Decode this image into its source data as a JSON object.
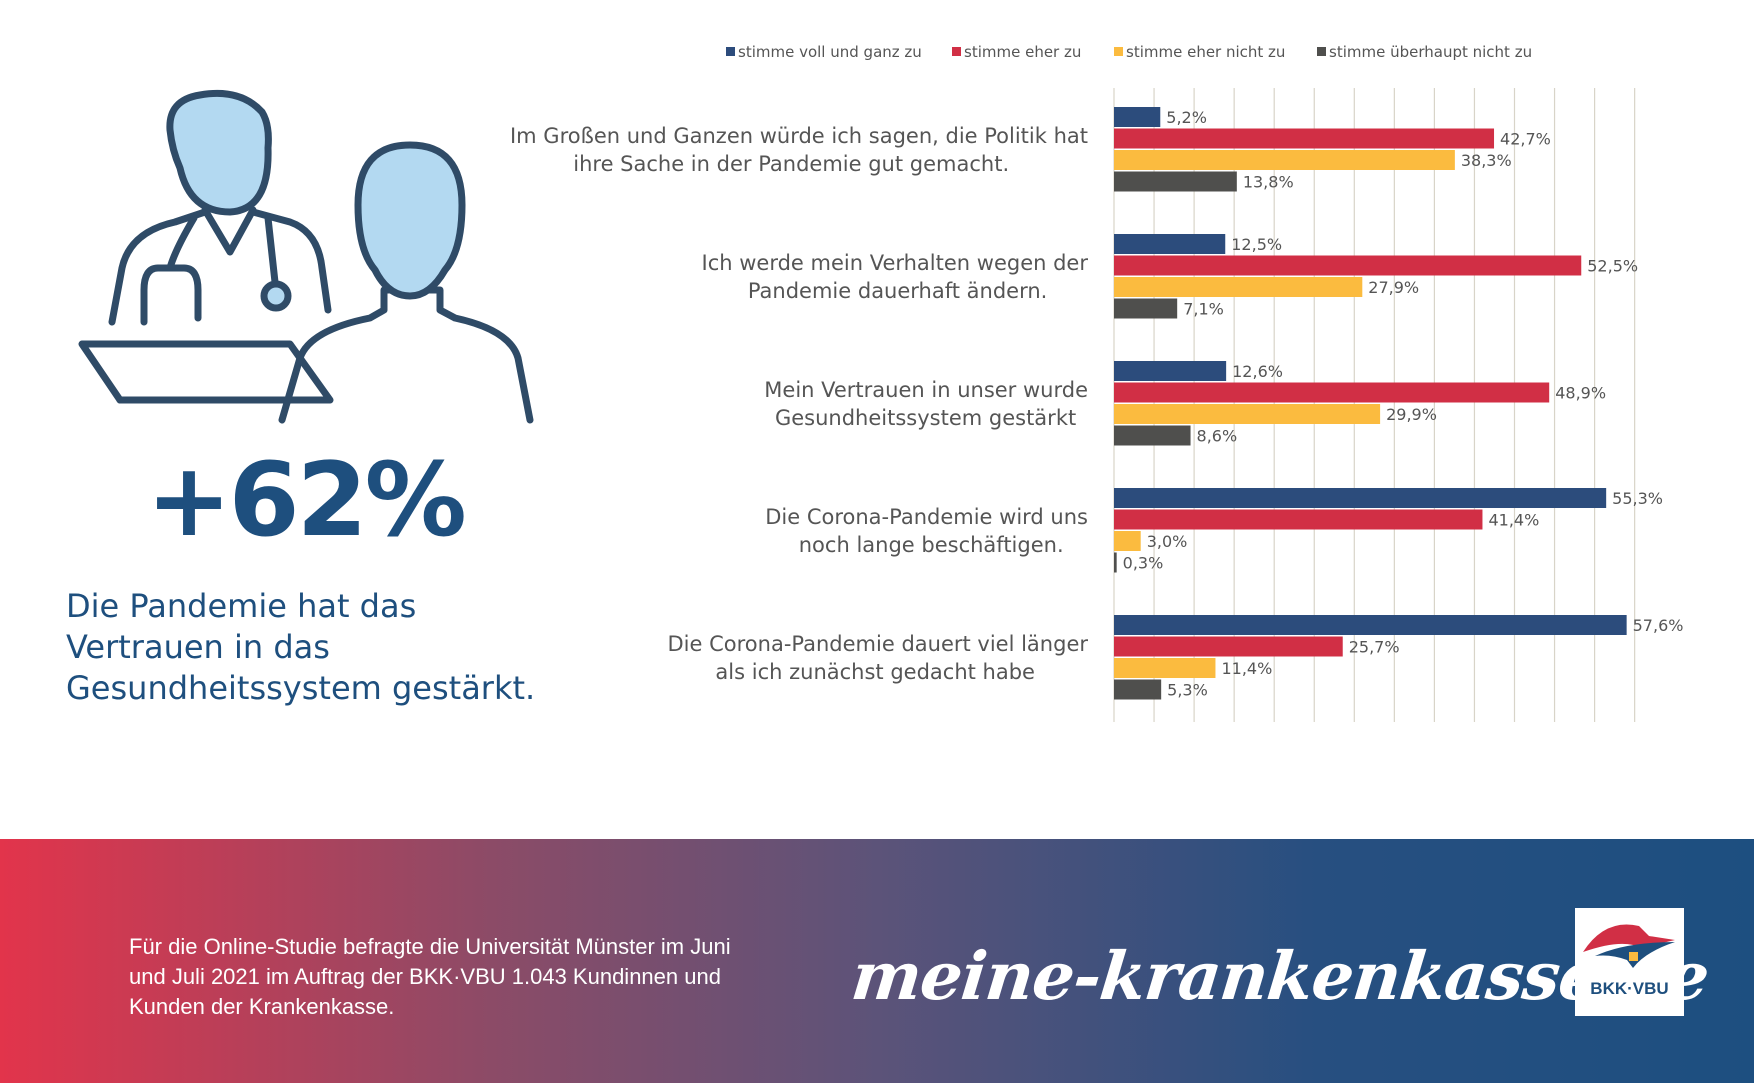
{
  "headline": {
    "stat": "+62%",
    "text": "Die Pandemie hat das Vertrauen in das Gesundheitssystem gestärkt."
  },
  "chart_data": {
    "type": "bar",
    "orientation": "horizontal",
    "xlim": [
      0,
      60
    ],
    "grid": true,
    "legend_position": "top",
    "categories": [
      "Im Großen und Ganzen würde ich sagen, die Politik hat ihre Sache in der Pandemie gut gemacht.",
      "Ich werde mein Verhalten wegen der Pandemie dauerhaft ändern.",
      "Mein Vertrauen in unser Gesundheitssystem wurde gestärkt",
      "Die Corona-Pandemie wird uns noch lange beschäftigen.",
      "Die Corona-Pandemie dauert viel länger als ich zunächst gedacht habe"
    ],
    "series": [
      {
        "name": "stimme voll und ganz zu",
        "color": "#2c4c7c",
        "values": [
          5.2,
          12.5,
          12.6,
          55.3,
          57.6
        ],
        "labels": [
          "5,2%",
          "12,5%",
          "12,6%",
          "55,3%",
          "57,6%"
        ]
      },
      {
        "name": "stimme eher zu",
        "color": "#d12f45",
        "values": [
          42.7,
          52.5,
          48.9,
          41.4,
          25.7
        ],
        "labels": [
          "42,7%",
          "52,5%",
          "48,9%",
          "41,4%",
          "25,7%"
        ]
      },
      {
        "name": "stimme eher nicht zu",
        "color": "#fbbb3f",
        "values": [
          38.3,
          27.9,
          29.9,
          3.0,
          11.4
        ],
        "labels": [
          "38,3%",
          "27,9%",
          "29,9%",
          "3,0%",
          "11,4%"
        ]
      },
      {
        "name": "stimme überhaupt nicht zu",
        "color": "#4f4f4d",
        "values": [
          13.8,
          7.1,
          8.6,
          0.3,
          5.3
        ],
        "labels": [
          "13,8%",
          "7,1%",
          "8,6%",
          "0,3%",
          "5,3%"
        ]
      }
    ]
  },
  "footer": {
    "note": "Für die Online-Studie befragte die Universität Münster im Juni und Juli 2021 im Auftrag der BKK·VBU 1.043 Kundinnen und Kunden der Krankenkasse.",
    "site": "meine-krankenkasse.de",
    "logo_text": "BKK·VBU"
  },
  "colors": {
    "headline": "#1e4f7e",
    "icon_fill": "#b3d9f1",
    "icon_stroke": "#2f4b67",
    "grid": "#d8d4c8",
    "text": "#555555"
  }
}
